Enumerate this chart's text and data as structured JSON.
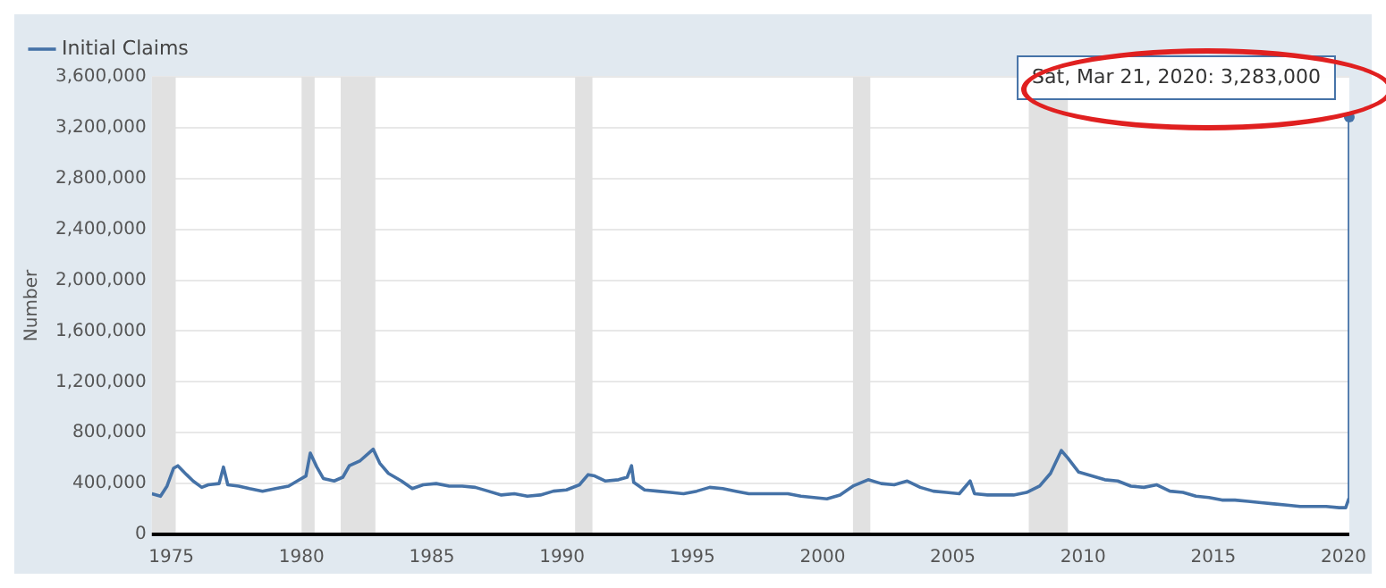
{
  "chart_data": {
    "type": "line",
    "ylabel": "Number",
    "legend": "top left",
    "grid": "y",
    "marker": "none",
    "line_style": "solid",
    "xlim": [
      "1974-04",
      "2020-03-21"
    ],
    "xticks": [
      "1975",
      "1980",
      "1985",
      "1990",
      "1995",
      "2000",
      "2005",
      "2010",
      "2015",
      "2020"
    ],
    "ylim": [
      0,
      3600000
    ],
    "yticks": [
      0,
      {
        "value": 400000,
        "label": "400,000"
      },
      {
        "value": 800000,
        "label": "800,000"
      },
      {
        "value": 1200000,
        "label": "1,200,000"
      },
      {
        "value": 1600000,
        "label": "1,600,000"
      },
      {
        "value": 2000000,
        "label": "2,000,000"
      },
      {
        "value": 2400000,
        "label": "2,400,000"
      },
      {
        "value": 2800000,
        "label": "2,800,000"
      },
      {
        "value": 3200000,
        "label": "3,200,000"
      },
      {
        "value": 3600000,
        "label": "3,600,000"
      }
    ],
    "bands": [
      {
        "axis": "x",
        "from": "1974-04",
        "to": "1975-03",
        "color": "#e1e1e1"
      },
      {
        "axis": "x",
        "from": "1980-01",
        "to": "1980-07",
        "color": "#e1e1e1"
      },
      {
        "axis": "x",
        "from": "1981-07",
        "to": "1982-11",
        "color": "#e1e1e1"
      },
      {
        "axis": "x",
        "from": "1990-07",
        "to": "1991-03",
        "color": "#e1e1e1"
      },
      {
        "axis": "x",
        "from": "2001-03",
        "to": "2001-11",
        "color": "#e1e1e1"
      },
      {
        "axis": "x",
        "from": "2007-12",
        "to": "2009-06",
        "color": "#e1e1e1"
      }
    ],
    "annotations": [
      {
        "text": "Sat, Mar 21, 2020: 3,283,000",
        "x": "2020-03-21",
        "y": 3283000
      }
    ],
    "x": [
      "1974-04",
      "1974-08",
      "1974-11",
      "1975-02",
      "1975-04",
      "1975-08",
      "1975-11",
      "1976-03",
      "1976-06",
      "1976-11",
      "1977-01",
      "1977-03",
      "1977-08",
      "1978-01",
      "1978-07",
      "1979-01",
      "1979-07",
      "1979-11",
      "1980-03",
      "1980-05",
      "1980-08",
      "1980-11",
      "1981-04",
      "1981-08",
      "1981-11",
      "1982-04",
      "1982-10",
      "1983-01",
      "1983-05",
      "1983-11",
      "1984-04",
      "1984-09",
      "1985-03",
      "1985-09",
      "1986-03",
      "1986-09",
      "1987-03",
      "1987-09",
      "1988-03",
      "1988-09",
      "1989-03",
      "1989-09",
      "1990-03",
      "1990-09",
      "1991-01",
      "1991-04",
      "1991-09",
      "1992-03",
      "1992-07",
      "1992-09",
      "1992-10",
      "1993-03",
      "1993-09",
      "1994-03",
      "1994-09",
      "1995-03",
      "1995-09",
      "1996-03",
      "1996-09",
      "1997-03",
      "1997-09",
      "1998-03",
      "1998-09",
      "1999-03",
      "1999-09",
      "2000-03",
      "2000-09",
      "2001-03",
      "2001-10",
      "2002-04",
      "2002-10",
      "2003-04",
      "2003-10",
      "2004-04",
      "2004-10",
      "2005-04",
      "2005-09",
      "2005-11",
      "2006-05",
      "2006-11",
      "2007-05",
      "2007-11",
      "2008-05",
      "2008-10",
      "2009-03",
      "2009-06",
      "2009-11",
      "2010-05",
      "2010-11",
      "2011-05",
      "2011-11",
      "2012-05",
      "2012-11",
      "2013-05",
      "2013-11",
      "2014-05",
      "2014-11",
      "2015-05",
      "2015-11",
      "2016-05",
      "2016-11",
      "2017-05",
      "2017-11",
      "2018-05",
      "2018-11",
      "2019-05",
      "2019-11",
      "2020-02",
      "2020-03-14",
      "2020-03-21"
    ],
    "series": [
      {
        "name": "Initial Claims",
        "color": "#4572a7",
        "values": [
          320000,
          300000,
          380000,
          520000,
          540000,
          470000,
          420000,
          370000,
          390000,
          400000,
          530000,
          390000,
          380000,
          360000,
          340000,
          360000,
          380000,
          420000,
          460000,
          640000,
          530000,
          440000,
          420000,
          450000,
          540000,
          580000,
          670000,
          560000,
          480000,
          420000,
          360000,
          390000,
          400000,
          380000,
          380000,
          370000,
          340000,
          310000,
          320000,
          300000,
          310000,
          340000,
          350000,
          390000,
          470000,
          460000,
          420000,
          430000,
          450000,
          540000,
          410000,
          350000,
          340000,
          330000,
          320000,
          340000,
          370000,
          360000,
          340000,
          320000,
          320000,
          320000,
          320000,
          300000,
          290000,
          280000,
          310000,
          380000,
          430000,
          400000,
          390000,
          420000,
          370000,
          340000,
          330000,
          320000,
          420000,
          320000,
          310000,
          310000,
          310000,
          330000,
          380000,
          480000,
          660000,
          600000,
          490000,
          460000,
          430000,
          420000,
          380000,
          370000,
          390000,
          340000,
          330000,
          300000,
          290000,
          270000,
          270000,
          260000,
          250000,
          240000,
          230000,
          220000,
          220000,
          220000,
          210000,
          210000,
          280000,
          3283000
        ]
      }
    ]
  }
}
